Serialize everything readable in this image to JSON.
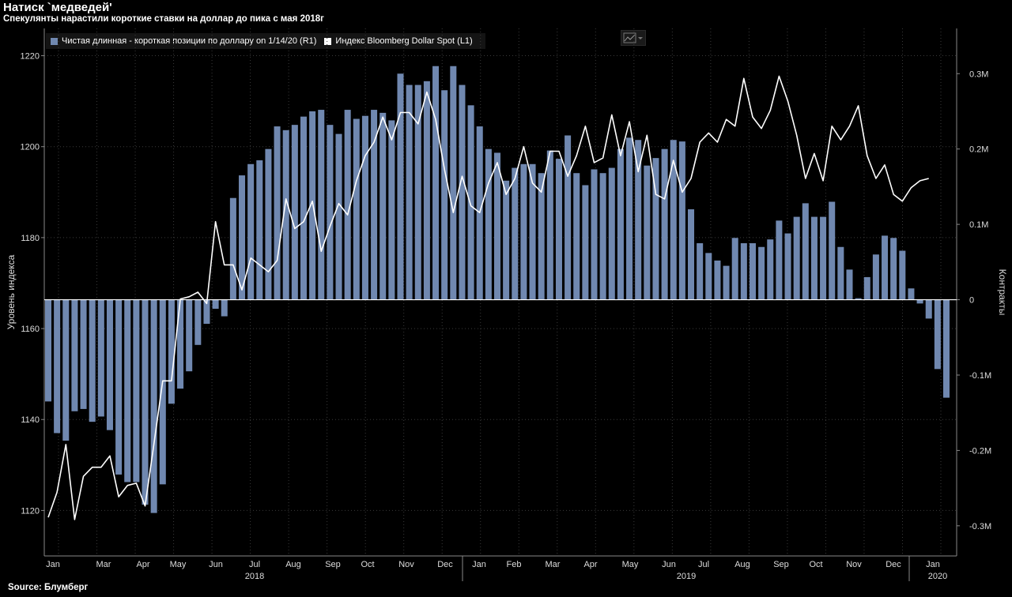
{
  "title": "Натиск `медведей'",
  "subtitle": "Спекулянты нарастили короткие ставки на доллар до пика с мая 2018г",
  "source": "Source: Блумберг",
  "colors": {
    "bar": "#7088b0",
    "line": "#ffffff",
    "background": "#000000"
  },
  "icons": {
    "chart_type_button": "line-chart-icon"
  },
  "chart_data": {
    "type": "bar+line",
    "title": "Натиск `медведей'",
    "ylabel_left": "Уровень индекса",
    "ylabel_right": "Контракты",
    "yleft_range": [
      1110,
      1226
    ],
    "yleft_ticks": [
      1120,
      1140,
      1160,
      1180,
      1200,
      1220
    ],
    "yright_range": [
      -0.34,
      0.36
    ],
    "yright_ticks": [
      -0.3,
      -0.2,
      -0.1,
      0,
      0.1,
      0.2,
      0.3
    ],
    "yright_tick_labels": [
      "-0.3M",
      "-0.2M",
      "-0.1M",
      "0",
      "0.1M",
      "0.2M",
      "0.3M"
    ],
    "month_labels": [
      "Jan",
      "Mar",
      "Apr",
      "May",
      "Jun",
      "Jul",
      "Aug",
      "Sep",
      "Oct",
      "Nov",
      "Dec",
      "Jan",
      "Feb",
      "Mar",
      "Apr",
      "May",
      "Jun",
      "Jul",
      "Aug",
      "Sep",
      "Oct",
      "Nov",
      "Dec",
      "Jan"
    ],
    "year_labels": [
      "2018",
      "2019",
      "2020"
    ],
    "grid": true,
    "series": [
      {
        "name": "Чистая длинная - короткая позиции по доллару on 1/14/20 (R1)",
        "type": "bar",
        "axis": "right",
        "unit": "M contracts",
        "values": [
          -0.135,
          -0.177,
          -0.187,
          -0.148,
          -0.145,
          -0.162,
          -0.155,
          -0.173,
          -0.232,
          -0.242,
          -0.242,
          -0.272,
          -0.283,
          -0.245,
          -0.138,
          -0.118,
          -0.095,
          -0.06,
          -0.032,
          -0.012,
          -0.022,
          0.135,
          0.165,
          0.18,
          0.185,
          0.2,
          0.23,
          0.225,
          0.232,
          0.243,
          0.25,
          0.252,
          0.232,
          0.22,
          0.252,
          0.24,
          0.244,
          0.252,
          0.248,
          0.238,
          0.3,
          0.285,
          0.285,
          0.29,
          0.31,
          0.278,
          0.31,
          0.285,
          0.258,
          0.23,
          0.2,
          0.195,
          0.158,
          0.175,
          0.18,
          0.18,
          0.168,
          0.198,
          0.187,
          0.218,
          0.168,
          0.152,
          0.173,
          0.168,
          0.175,
          0.2,
          0.215,
          0.212,
          0.178,
          0.188,
          0.2,
          0.212,
          0.21,
          0.12,
          0.075,
          0.062,
          0.052,
          0.045,
          0.082,
          0.075,
          0.075,
          0.07,
          0.08,
          0.105,
          0.088,
          0.11,
          0.128,
          0.11,
          0.11,
          0.13,
          0.07,
          0.04,
          0.002,
          0.03,
          0.06,
          0.085,
          0.082,
          0.065,
          0.015,
          -0.005,
          -0.025,
          -0.092,
          -0.13
        ]
      },
      {
        "name": "Индекс Bloomberg Dollar Spot (L1)",
        "type": "line",
        "axis": "left",
        "values": [
          1118.5,
          1124,
          1134.5,
          1118,
          1127.5,
          1129.5,
          1129.5,
          1132,
          1123,
          1125.5,
          1126,
          1121,
          1134.5,
          1148.5,
          1148.5,
          1166.5,
          1167,
          1168,
          1165.5,
          1183.5,
          1174,
          1174,
          1168.5,
          1175.5,
          1174,
          1172.5,
          1175,
          1188.5,
          1182,
          1183.5,
          1188,
          1177,
          1182.5,
          1187.5,
          1185,
          1192.5,
          1198,
          1201,
          1206.5,
          1201.5,
          1207.5,
          1207.5,
          1205,
          1212,
          1206,
          1195,
          1185.5,
          1193.5,
          1187,
          1185.5,
          1192,
          1196.5,
          1189.5,
          1193,
          1200,
          1192,
          1190,
          1199,
          1199,
          1193.5,
          1198,
          1204.5,
          1196.5,
          1197.5,
          1207,
          1198,
          1205.5,
          1194.5,
          1202.5,
          1189.5,
          1188.5,
          1197,
          1190,
          1193,
          1201,
          1203,
          1201,
          1206,
          1204.5,
          1215,
          1206.5,
          1204,
          1208,
          1215.5,
          1210,
          1202.5,
          1193,
          1198.5,
          1192.5,
          1204.5,
          1201.5,
          1204.5,
          1209,
          1198,
          1193,
          1196,
          1189.5,
          1188,
          1191,
          1192.5,
          1193
        ]
      }
    ]
  }
}
